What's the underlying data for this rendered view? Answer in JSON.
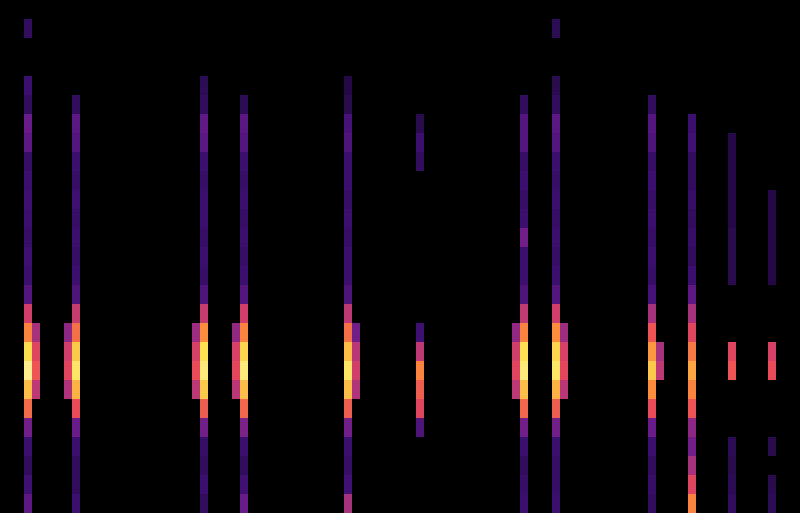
{
  "chart_data": {
    "type": "heatmap",
    "xlim": [
      0,
      100
    ],
    "ylim": [
      0,
      27
    ],
    "tick_labels": false,
    "grid": false,
    "color_range": [
      0,
      100
    ],
    "cell_size": [
      1,
      1
    ],
    "cells": [
      [
        3,
        0,
        25
      ],
      [
        3,
        1,
        15
      ],
      [
        3,
        2,
        12
      ],
      [
        3,
        3,
        14
      ],
      [
        3,
        4,
        30
      ],
      [
        3,
        5,
        65
      ],
      [
        3,
        6,
        80
      ],
      [
        3,
        7,
        92
      ],
      [
        3,
        8,
        85
      ],
      [
        3,
        9,
        70
      ],
      [
        3,
        10,
        50
      ],
      [
        3,
        11,
        22
      ],
      [
        3,
        12,
        14
      ],
      [
        3,
        13,
        15
      ],
      [
        3,
        14,
        13
      ],
      [
        3,
        15,
        14
      ],
      [
        3,
        16,
        15
      ],
      [
        3,
        17,
        14
      ],
      [
        3,
        18,
        13
      ],
      [
        3,
        19,
        25
      ],
      [
        3,
        20,
        28
      ],
      [
        3,
        21,
        12
      ],
      [
        3,
        22,
        14
      ],
      [
        3,
        25,
        12
      ],
      [
        4,
        6,
        45
      ],
      [
        4,
        7,
        60
      ],
      [
        4,
        8,
        55
      ],
      [
        4,
        9,
        40
      ],
      [
        9,
        0,
        14
      ],
      [
        9,
        1,
        12
      ],
      [
        9,
        2,
        12
      ],
      [
        9,
        3,
        14
      ],
      [
        9,
        4,
        28
      ],
      [
        9,
        5,
        58
      ],
      [
        9,
        6,
        78
      ],
      [
        9,
        7,
        88
      ],
      [
        9,
        8,
        82
      ],
      [
        9,
        9,
        66
      ],
      [
        9,
        10,
        48
      ],
      [
        9,
        11,
        20
      ],
      [
        9,
        12,
        14
      ],
      [
        9,
        13,
        13
      ],
      [
        9,
        14,
        14
      ],
      [
        9,
        15,
        13
      ],
      [
        9,
        16,
        15
      ],
      [
        9,
        17,
        13
      ],
      [
        9,
        18,
        14
      ],
      [
        9,
        19,
        22
      ],
      [
        9,
        20,
        24
      ],
      [
        9,
        21,
        12
      ],
      [
        8,
        6,
        42
      ],
      [
        8,
        7,
        55
      ],
      [
        8,
        8,
        50
      ],
      [
        8,
        9,
        35
      ],
      [
        25,
        0,
        12
      ],
      [
        25,
        1,
        14
      ],
      [
        25,
        2,
        12
      ],
      [
        25,
        3,
        13
      ],
      [
        25,
        4,
        30
      ],
      [
        25,
        5,
        62
      ],
      [
        25,
        6,
        82
      ],
      [
        25,
        7,
        90
      ],
      [
        25,
        8,
        86
      ],
      [
        25,
        9,
        72
      ],
      [
        25,
        10,
        48
      ],
      [
        25,
        11,
        20
      ],
      [
        25,
        12,
        13
      ],
      [
        25,
        13,
        14
      ],
      [
        25,
        14,
        13
      ],
      [
        25,
        15,
        14
      ],
      [
        25,
        16,
        14
      ],
      [
        25,
        17,
        13
      ],
      [
        25,
        18,
        14
      ],
      [
        25,
        19,
        24
      ],
      [
        25,
        20,
        26
      ],
      [
        25,
        21,
        12
      ],
      [
        25,
        22,
        11
      ],
      [
        24,
        6,
        45
      ],
      [
        24,
        7,
        58
      ],
      [
        24,
        8,
        52
      ],
      [
        24,
        9,
        38
      ],
      [
        30,
        0,
        28
      ],
      [
        30,
        1,
        16
      ],
      [
        30,
        2,
        12
      ],
      [
        30,
        3,
        14
      ],
      [
        30,
        4,
        32
      ],
      [
        30,
        5,
        64
      ],
      [
        30,
        6,
        80
      ],
      [
        30,
        7,
        90
      ],
      [
        30,
        8,
        84
      ],
      [
        30,
        9,
        70
      ],
      [
        30,
        10,
        50
      ],
      [
        30,
        11,
        22
      ],
      [
        30,
        12,
        14
      ],
      [
        30,
        13,
        13
      ],
      [
        30,
        14,
        14
      ],
      [
        30,
        15,
        13
      ],
      [
        30,
        16,
        14
      ],
      [
        30,
        17,
        13
      ],
      [
        30,
        18,
        14
      ],
      [
        30,
        19,
        22
      ],
      [
        30,
        20,
        24
      ],
      [
        30,
        21,
        11
      ],
      [
        29,
        6,
        44
      ],
      [
        29,
        7,
        56
      ],
      [
        29,
        8,
        52
      ],
      [
        29,
        9,
        36
      ],
      [
        43,
        0,
        40
      ],
      [
        43,
        1,
        16
      ],
      [
        43,
        2,
        13
      ],
      [
        43,
        3,
        14
      ],
      [
        43,
        4,
        30
      ],
      [
        43,
        5,
        62
      ],
      [
        43,
        6,
        80
      ],
      [
        43,
        7,
        88
      ],
      [
        43,
        8,
        80
      ],
      [
        43,
        9,
        66
      ],
      [
        43,
        10,
        45
      ],
      [
        43,
        11,
        20
      ],
      [
        43,
        12,
        14
      ],
      [
        43,
        13,
        14
      ],
      [
        43,
        14,
        13
      ],
      [
        43,
        15,
        14
      ],
      [
        43,
        16,
        13
      ],
      [
        43,
        17,
        14
      ],
      [
        43,
        18,
        14
      ],
      [
        43,
        19,
        20
      ],
      [
        43,
        20,
        18
      ],
      [
        43,
        21,
        10
      ],
      [
        43,
        22,
        9
      ],
      [
        44,
        6,
        42
      ],
      [
        44,
        7,
        50
      ],
      [
        44,
        8,
        44
      ],
      [
        44,
        9,
        30
      ],
      [
        52,
        4,
        20
      ],
      [
        52,
        5,
        55
      ],
      [
        52,
        6,
        62
      ],
      [
        52,
        7,
        70
      ],
      [
        52,
        8,
        45
      ],
      [
        52,
        9,
        15
      ],
      [
        52,
        18,
        12
      ],
      [
        52,
        19,
        14
      ],
      [
        52,
        20,
        10
      ],
      [
        65,
        0,
        14
      ],
      [
        65,
        1,
        13
      ],
      [
        65,
        2,
        12
      ],
      [
        65,
        3,
        14
      ],
      [
        65,
        4,
        30
      ],
      [
        65,
        5,
        64
      ],
      [
        65,
        6,
        80
      ],
      [
        65,
        7,
        90
      ],
      [
        65,
        8,
        86
      ],
      [
        65,
        9,
        70
      ],
      [
        65,
        10,
        46
      ],
      [
        65,
        11,
        20
      ],
      [
        65,
        12,
        14
      ],
      [
        65,
        13,
        14
      ],
      [
        65,
        14,
        30
      ],
      [
        65,
        15,
        14
      ],
      [
        65,
        16,
        13
      ],
      [
        65,
        17,
        14
      ],
      [
        65,
        18,
        13
      ],
      [
        65,
        19,
        22
      ],
      [
        65,
        20,
        22
      ],
      [
        65,
        21,
        12
      ],
      [
        64,
        6,
        45
      ],
      [
        64,
        7,
        55
      ],
      [
        64,
        8,
        50
      ],
      [
        64,
        9,
        36
      ],
      [
        69,
        0,
        14
      ],
      [
        69,
        1,
        13
      ],
      [
        69,
        2,
        13
      ],
      [
        69,
        3,
        14
      ],
      [
        69,
        4,
        30
      ],
      [
        69,
        5,
        62
      ],
      [
        69,
        6,
        78
      ],
      [
        69,
        7,
        88
      ],
      [
        69,
        8,
        84
      ],
      [
        69,
        9,
        72
      ],
      [
        69,
        10,
        50
      ],
      [
        69,
        11,
        22
      ],
      [
        69,
        12,
        14
      ],
      [
        69,
        13,
        13
      ],
      [
        69,
        14,
        14
      ],
      [
        69,
        15,
        13
      ],
      [
        69,
        16,
        14
      ],
      [
        69,
        17,
        13
      ],
      [
        69,
        18,
        14
      ],
      [
        69,
        19,
        22
      ],
      [
        69,
        20,
        24
      ],
      [
        69,
        21,
        12
      ],
      [
        69,
        22,
        10
      ],
      [
        69,
        25,
        11
      ],
      [
        70,
        6,
        44
      ],
      [
        70,
        7,
        56
      ],
      [
        70,
        8,
        52
      ],
      [
        70,
        9,
        38
      ],
      [
        81,
        0,
        12
      ],
      [
        81,
        1,
        13
      ],
      [
        81,
        2,
        12
      ],
      [
        81,
        3,
        14
      ],
      [
        81,
        4,
        28
      ],
      [
        81,
        5,
        58
      ],
      [
        81,
        6,
        72
      ],
      [
        81,
        7,
        82
      ],
      [
        81,
        8,
        74
      ],
      [
        81,
        9,
        60
      ],
      [
        81,
        10,
        40
      ],
      [
        81,
        11,
        18
      ],
      [
        81,
        12,
        13
      ],
      [
        81,
        13,
        14
      ],
      [
        81,
        14,
        13
      ],
      [
        81,
        15,
        14
      ],
      [
        81,
        16,
        13
      ],
      [
        81,
        17,
        14
      ],
      [
        81,
        18,
        13
      ],
      [
        81,
        19,
        20
      ],
      [
        81,
        20,
        22
      ],
      [
        81,
        21,
        12
      ],
      [
        82,
        7,
        45
      ],
      [
        82,
        8,
        40
      ],
      [
        86,
        0,
        70
      ],
      [
        86,
        1,
        55
      ],
      [
        86,
        2,
        40
      ],
      [
        86,
        3,
        30
      ],
      [
        86,
        4,
        35
      ],
      [
        86,
        5,
        60
      ],
      [
        86,
        6,
        70
      ],
      [
        86,
        7,
        76
      ],
      [
        86,
        8,
        68
      ],
      [
        86,
        9,
        55
      ],
      [
        86,
        10,
        40
      ],
      [
        86,
        11,
        25
      ],
      [
        86,
        12,
        14
      ],
      [
        86,
        13,
        12
      ],
      [
        86,
        14,
        13
      ],
      [
        86,
        15,
        12
      ],
      [
        86,
        16,
        13
      ],
      [
        86,
        17,
        12
      ],
      [
        86,
        18,
        12
      ],
      [
        86,
        19,
        16
      ],
      [
        86,
        20,
        14
      ],
      [
        91,
        0,
        12
      ],
      [
        91,
        1,
        11
      ],
      [
        91,
        2,
        10
      ],
      [
        91,
        3,
        11
      ],
      [
        91,
        7,
        60
      ],
      [
        91,
        8,
        55
      ],
      [
        91,
        12,
        10
      ],
      [
        91,
        13,
        10
      ],
      [
        91,
        14,
        10
      ],
      [
        91,
        15,
        9
      ],
      [
        91,
        16,
        9
      ],
      [
        91,
        17,
        9
      ],
      [
        91,
        18,
        9
      ],
      [
        91,
        19,
        9
      ],
      [
        96,
        0,
        11
      ],
      [
        96,
        1,
        10
      ],
      [
        96,
        3,
        10
      ],
      [
        96,
        7,
        58
      ],
      [
        96,
        8,
        52
      ],
      [
        96,
        12,
        9
      ],
      [
        96,
        13,
        9
      ],
      [
        96,
        14,
        9
      ],
      [
        96,
        15,
        9
      ],
      [
        96,
        16,
        9
      ]
    ]
  }
}
